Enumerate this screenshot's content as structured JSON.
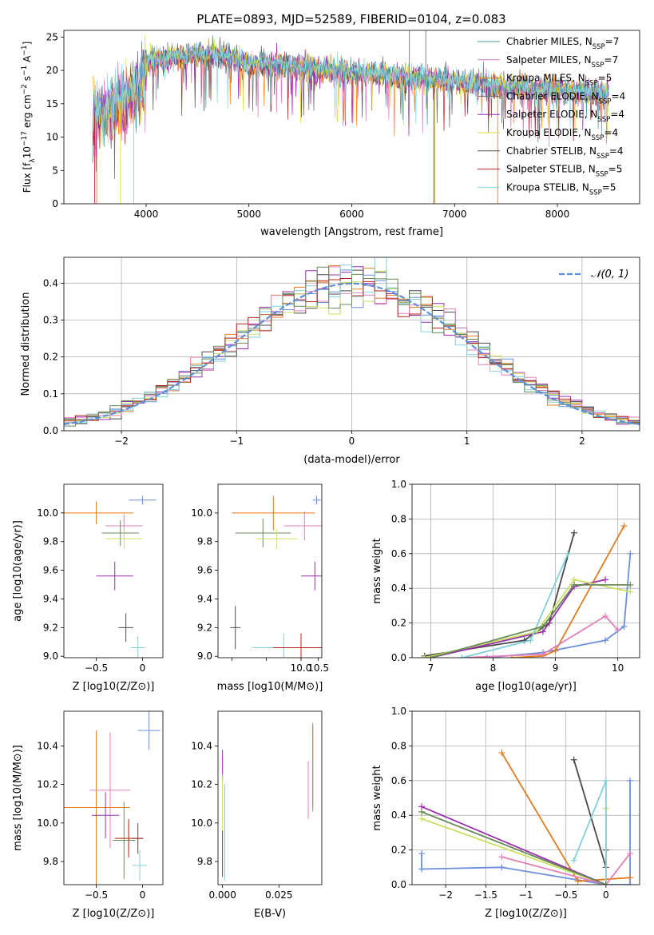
{
  "title": "PLATE=0893, MJD=52589, FIBERID=0104, z=0.083",
  "colors": {
    "chabrier_miles": "#4c9da6",
    "salpeter_miles": "#e377c2",
    "kroupa_miles": "#ff7f0e",
    "chabrier_elodie": "#6b6b6b",
    "salpeter_elodie": "#9c27b0",
    "kroupa_elodie": "#dede3a",
    "chabrier_stelib": "#555555",
    "salpeter_stelib": "#b22222",
    "kroupa_stelib": "#87d8e8",
    "norm_curve": "#5b8fd9",
    "blue": "#6a8fdc",
    "orange": "#e07b20",
    "dark": "#4a4a4a",
    "purple": "#9b2fb0",
    "green": "#6a8a5a",
    "lime": "#c8e060",
    "pink": "#e380b8",
    "cyan": "#7fd1d8",
    "red": "#b22222"
  },
  "legend_spectrum": {
    "entries": [
      {
        "text": "Chabrier MILES, N",
        "sub": "SSP",
        "tail": "=7",
        "color": "#4c9da6"
      },
      {
        "text": "Salpeter MILES, N",
        "sub": "SSP",
        "tail": "=7",
        "color": "#e377c2"
      },
      {
        "text": "Kroupa MILES, N",
        "sub": "SSP",
        "tail": "=5",
        "color": "#ff7f0e"
      },
      {
        "text": "Chabrier ELODIE, N",
        "sub": "SSP",
        "tail": "=4",
        "color": "#6b6b6b"
      },
      {
        "text": "Salpeter ELODIE, N",
        "sub": "SSP",
        "tail": "=4",
        "color": "#9c27b0"
      },
      {
        "text": "Kroupa ELODIE, N",
        "sub": "SSP",
        "tail": "=4",
        "color": "#dede3a"
      },
      {
        "text": "Chabrier STELIB, N",
        "sub": "SSP",
        "tail": "=4",
        "color": "#555555"
      },
      {
        "text": "Salpeter STELIB, N",
        "sub": "SSP",
        "tail": "=5",
        "color": "#b22222"
      },
      {
        "text": "Kroupa STELIB, N",
        "sub": "SSP",
        "tail": "=5",
        "color": "#87d8e8"
      }
    ]
  },
  "chart_data": [
    {
      "id": "spectrum",
      "type": "line",
      "title": "PLATE=0893, MJD=52589, FIBERID=0104, z=0.083",
      "xlabel": "wavelength [Angstrom, rest frame]",
      "ylabel": "Flux [f_λ 10^-17 erg cm^-2 s^-1 A^-1]",
      "xlim": [
        3200,
        8800
      ],
      "ylim": [
        0,
        26
      ],
      "xticks": [
        4000,
        5000,
        6000,
        7000,
        8000
      ],
      "yticks": [
        0,
        5,
        10,
        15,
        20,
        25
      ],
      "grid": false,
      "legend": "top-right",
      "profile_x": [
        3500,
        3700,
        3900,
        4000,
        4100,
        4300,
        4500,
        4700,
        5000,
        5200,
        5500,
        5800,
        6000,
        6200,
        6500,
        6700,
        6900,
        7100,
        7300,
        7500,
        7800,
        8000,
        8200,
        8500
      ],
      "profile_y": [
        13.0,
        15.0,
        16.5,
        21.0,
        21.5,
        22.0,
        22.5,
        22.5,
        21.0,
        21.0,
        20.5,
        20.0,
        19.5,
        19.5,
        19.0,
        18.8,
        18.5,
        18.0,
        17.8,
        17.5,
        17.2,
        17.0,
        16.8,
        16.5
      ]
    },
    {
      "id": "residual-histogram",
      "type": "line",
      "xlabel": "(data-model)/error",
      "ylabel": "Normed distribution",
      "xlim": [
        -2.5,
        2.5
      ],
      "ylim": [
        0,
        0.47
      ],
      "xticks": [
        -2,
        -1,
        0,
        1,
        2
      ],
      "yticks": [
        0.0,
        0.1,
        0.2,
        0.3,
        0.4
      ],
      "grid": true,
      "legend": "top-right",
      "legend_entry": "N(0,1)",
      "bin_width": 0.1
    },
    {
      "id": "age-vs-z",
      "type": "scatter",
      "xlabel": "Z [log10(Z/Z⊙)]",
      "ylabel": "age [log10(age/yr)]",
      "xlim": [
        -0.85,
        0.22
      ],
      "ylim": [
        8.99,
        10.2
      ],
      "xticks": [
        -0.5,
        0.0
      ],
      "yticks": [
        9.0,
        9.2,
        9.4,
        9.6,
        9.8,
        10.0
      ],
      "points": [
        {
          "x": 0.0,
          "y": 10.09,
          "xerr": 0.15,
          "yerr": 0.03,
          "c": "blue"
        },
        {
          "x": -0.5,
          "y": 10.0,
          "xerr": 0.4,
          "yerr": 0.08,
          "c": "orange"
        },
        {
          "x": -0.2,
          "y": 9.91,
          "xerr": 0.2,
          "yerr": 0.08,
          "c": "pink"
        },
        {
          "x": -0.24,
          "y": 9.86,
          "xerr": 0.2,
          "yerr": 0.09,
          "c": "green"
        },
        {
          "x": -0.2,
          "y": 9.82,
          "xerr": 0.2,
          "yerr": 0.07,
          "c": "lime"
        },
        {
          "x": -0.3,
          "y": 9.56,
          "xerr": 0.2,
          "yerr": 0.1,
          "c": "purple"
        },
        {
          "x": -0.18,
          "y": 9.2,
          "xerr": 0.08,
          "yerr": 0.1,
          "c": "dark"
        },
        {
          "x": -0.05,
          "y": 9.06,
          "xerr": 0.08,
          "yerr": 0.08,
          "c": "cyan"
        }
      ]
    },
    {
      "id": "age-vs-mass",
      "type": "scatter",
      "xlabel": "mass [log10(M/M⊙)]",
      "ylabel": "",
      "xlim": [
        7.6,
        10.6
      ],
      "ylim": [
        8.99,
        10.2
      ],
      "xticks": [
        8.0,
        9.0,
        10.0,
        10.5
      ],
      "xtick_labels": [
        "",
        "",
        "10.0",
        "10.5"
      ],
      "yticks": [
        9.0,
        9.2,
        9.4,
        9.6,
        9.8,
        10.0
      ],
      "points": [
        {
          "x": 10.45,
          "y": 10.09,
          "xerr": 0.12,
          "yerr": 0.03,
          "c": "blue"
        },
        {
          "x": 9.2,
          "y": 10.0,
          "xerr": 1.2,
          "yerr": 0.12,
          "c": "orange"
        },
        {
          "x": 10.1,
          "y": 9.91,
          "xerr": 0.6,
          "yerr": 0.1,
          "c": "pink"
        },
        {
          "x": 8.9,
          "y": 9.86,
          "xerr": 0.8,
          "yerr": 0.1,
          "c": "green"
        },
        {
          "x": 9.3,
          "y": 9.82,
          "xerr": 0.6,
          "yerr": 0.07,
          "c": "lime"
        },
        {
          "x": 10.4,
          "y": 9.56,
          "xerr": 0.4,
          "yerr": 0.1,
          "c": "purple"
        },
        {
          "x": 8.1,
          "y": 9.2,
          "xerr": 0.15,
          "yerr": 0.15,
          "c": "dark"
        },
        {
          "x": 9.5,
          "y": 9.06,
          "xerr": 0.9,
          "yerr": 0.1,
          "c": "cyan"
        },
        {
          "x": 10.0,
          "y": 9.06,
          "xerr": 0.8,
          "yerr": 0.1,
          "c": "red"
        }
      ]
    },
    {
      "id": "massweight-vs-age",
      "type": "line",
      "xlabel": "age [log10(age/yr)]",
      "ylabel": "mass weight",
      "xlim": [
        6.7,
        10.35
      ],
      "ylim": [
        0.0,
        1.0
      ],
      "xticks": [
        7,
        8,
        9,
        10
      ],
      "yticks": [
        0.0,
        0.2,
        0.4,
        0.6,
        0.8,
        1.0
      ],
      "grid": true,
      "series": [
        {
          "c": "blue",
          "x": [
            7.9,
            8.8,
            9.8,
            10.1,
            10.2
          ],
          "y": [
            0.0,
            0.03,
            0.1,
            0.18,
            0.6
          ]
        },
        {
          "c": "orange",
          "x": [
            8.3,
            8.8,
            9.0,
            10.1
          ],
          "y": [
            0.0,
            0.01,
            0.04,
            0.76
          ]
        },
        {
          "c": "dark",
          "x": [
            6.9,
            8.5,
            8.9,
            9.3
          ],
          "y": [
            0.01,
            0.1,
            0.2,
            0.72
          ]
        },
        {
          "c": "purple",
          "x": [
            7.0,
            8.8,
            9.3,
            9.8
          ],
          "y": [
            0.0,
            0.15,
            0.41,
            0.45
          ]
        },
        {
          "c": "lime",
          "x": [
            6.9,
            8.7,
            9.3,
            10.2
          ],
          "y": [
            0.0,
            0.15,
            0.45,
            0.38
          ]
        },
        {
          "c": "pink",
          "x": [
            7.5,
            8.8,
            9.8,
            10.0
          ],
          "y": [
            0.0,
            0.02,
            0.24,
            0.16
          ]
        },
        {
          "c": "cyan",
          "x": [
            7.5,
            8.6,
            9.2
          ],
          "y": [
            0.0,
            0.1,
            0.6
          ]
        },
        {
          "c": "green",
          "x": [
            7.0,
            8.8,
            9.3,
            10.2
          ],
          "y": [
            0.0,
            0.18,
            0.42,
            0.42
          ]
        }
      ]
    },
    {
      "id": "mass-vs-z",
      "type": "scatter",
      "xlabel": "Z [log10(Z/Z⊙)]",
      "ylabel": "mass [log10(M/M⊙)]",
      "xlim": [
        -0.85,
        0.22
      ],
      "ylim": [
        9.68,
        10.58
      ],
      "xticks": [
        -0.5,
        0.0
      ],
      "yticks": [
        9.8,
        10.0,
        10.2,
        10.4
      ],
      "points": [
        {
          "x": 0.07,
          "y": 10.48,
          "xerr": 0.12,
          "yerr": 0.1,
          "c": "blue"
        },
        {
          "x": -0.5,
          "y": 10.08,
          "xerr": 0.36,
          "yerr": 0.4,
          "c": "orange"
        },
        {
          "x": -0.35,
          "y": 10.17,
          "xerr": 0.22,
          "yerr": 0.3,
          "c": "pink"
        },
        {
          "x": -0.4,
          "y": 10.04,
          "xerr": 0.15,
          "yerr": 0.12,
          "c": "purple"
        },
        {
          "x": -0.2,
          "y": 9.91,
          "xerr": 0.12,
          "yerr": 0.2,
          "c": "green"
        },
        {
          "x": -0.15,
          "y": 9.92,
          "xerr": 0.15,
          "yerr": 0.08,
          "c": "lime"
        },
        {
          "x": -0.05,
          "y": 9.92,
          "xerr": 0.06,
          "yerr": 0.08,
          "c": "dark"
        },
        {
          "x": -0.03,
          "y": 9.78,
          "xerr": 0.08,
          "yerr": 0.08,
          "c": "cyan"
        },
        {
          "x": -0.15,
          "y": 9.92,
          "xerr": 0.15,
          "yerr": 0.1,
          "c": "red"
        }
      ]
    },
    {
      "id": "mass-vs-ebv",
      "type": "scatter",
      "xlabel": "E(B-V)",
      "ylabel": "",
      "xlim": [
        -0.002,
        0.044
      ],
      "ylim": [
        9.68,
        10.58
      ],
      "xticks": [
        0.0,
        0.025
      ],
      "xtick_labels": [
        "0.000",
        "0.025"
      ],
      "yticks": [
        9.8,
        10.0,
        10.2,
        10.4
      ],
      "points": [
        {
          "x": 0.04,
          "y": 10.3,
          "xerr": 0,
          "yerr": 0.22,
          "c": "blue"
        },
        {
          "x": 0.04,
          "y": 10.28,
          "xerr": 0,
          "yerr": 0.22,
          "c": "orange"
        },
        {
          "x": 0.038,
          "y": 10.17,
          "xerr": 0,
          "yerr": 0.15,
          "c": "pink"
        },
        {
          "x": 0.0,
          "y": 10.3,
          "xerr": 0,
          "yerr": 0.08,
          "c": "purple"
        },
        {
          "x": 0.0,
          "y": 10.1,
          "xerr": 0,
          "yerr": 0.15,
          "c": "lime"
        },
        {
          "x": 0.0,
          "y": 9.84,
          "xerr": 0,
          "yerr": 0.12,
          "c": "dark"
        },
        {
          "x": 0.001,
          "y": 9.95,
          "xerr": 0,
          "yerr": 0.25,
          "c": "cyan"
        }
      ]
    },
    {
      "id": "massweight-vs-z",
      "type": "line",
      "xlabel": "Z [log10(Z/Z⊙)]",
      "ylabel": "mass weight",
      "xlim": [
        -2.42,
        0.42
      ],
      "ylim": [
        0.0,
        1.0
      ],
      "xticks": [
        -2.0,
        -1.5,
        -1.0,
        -0.5,
        0.0
      ],
      "yticks": [
        0.0,
        0.2,
        0.4,
        0.6,
        0.8,
        1.0
      ],
      "grid": true,
      "series": [
        {
          "c": "blue",
          "x": [
            -2.3,
            -2.3,
            -1.3,
            0.0,
            0.3,
            0.3
          ],
          "y": [
            0.18,
            0.09,
            0.1,
            0.0,
            0.0,
            0.6
          ]
        },
        {
          "c": "orange",
          "x": [
            -1.3,
            -0.35,
            0.3
          ],
          "y": [
            0.76,
            0.02,
            0.04
          ]
        },
        {
          "c": "dark",
          "x": [
            -0.4,
            0.0,
            0.0
          ],
          "y": [
            0.72,
            0.1,
            0.2
          ]
        },
        {
          "c": "purple",
          "x": [
            -2.3,
            0.0
          ],
          "y": [
            0.45,
            0.0
          ]
        },
        {
          "c": "lime",
          "x": [
            -2.3,
            0.0,
            0.0
          ],
          "y": [
            0.38,
            0.0,
            0.44
          ]
        },
        {
          "c": "pink",
          "x": [
            -1.3,
            0.0,
            0.3
          ],
          "y": [
            0.16,
            0.0,
            0.18
          ]
        },
        {
          "c": "cyan",
          "x": [
            -0.4,
            0.0,
            0.0
          ],
          "y": [
            0.14,
            0.6,
            0.0
          ]
        },
        {
          "c": "green",
          "x": [
            -2.3,
            0.0
          ],
          "y": [
            0.42,
            0.0
          ]
        }
      ]
    }
  ]
}
